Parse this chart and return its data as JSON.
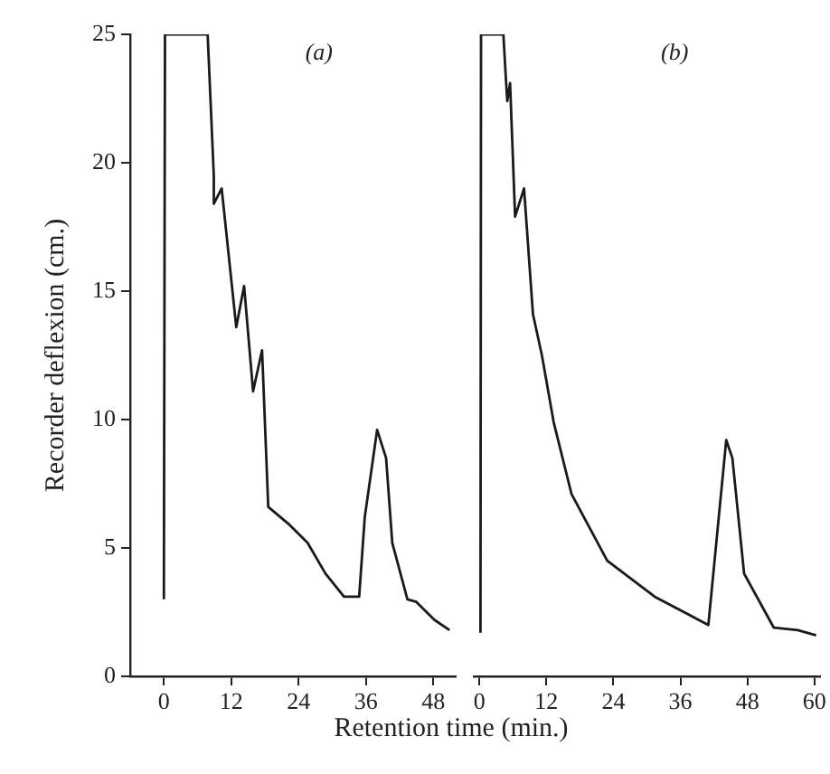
{
  "chart_data": [
    {
      "type": "line",
      "title": "(a)",
      "xlabel": "Retention time (min.)",
      "ylabel": "Recorder deflexion (cm.)",
      "x": [
        0,
        0.2,
        7.8,
        8.9,
        8.9,
        10.3,
        12.9,
        14.3,
        15.9,
        17.5,
        18.6,
        22.4,
        25.6,
        28.8,
        32.1,
        34.8,
        35.8,
        38.0,
        39.6,
        40.7,
        43.4,
        45.0,
        48.2,
        50.9
      ],
      "series": [
        {
          "color": "#1a1a1a",
          "values": [
            3.0,
            25,
            25,
            19.5,
            18.4,
            19.0,
            13.6,
            15.2,
            11.1,
            12.7,
            6.6,
            5.9,
            5.2,
            4.0,
            3.1,
            3.1,
            6.2,
            9.6,
            8.5,
            5.2,
            3.0,
            2.9,
            2.2,
            1.8
          ]
        }
      ],
      "xlim": [
        -6,
        52
      ],
      "xticks": [
        0,
        12,
        24,
        36,
        48
      ],
      "ylim": [
        0,
        25
      ],
      "yticks": [
        0,
        5,
        10,
        15,
        20,
        25
      ],
      "grid": false,
      "marker": "none"
    },
    {
      "type": "line",
      "title": "(b)",
      "x": [
        0.2,
        0.3,
        4.3,
        4.8,
        5.0,
        5.5,
        6.4,
        8.0,
        9.6,
        11.2,
        13.3,
        16.5,
        22.9,
        31.4,
        41.0,
        44.2,
        45.3,
        47.4,
        52.7,
        57.0,
        60.3
      ],
      "series": [
        {
          "color": "#1a1a1a",
          "values": [
            1.7,
            25,
            25,
            23.1,
            22.4,
            23.1,
            17.9,
            19.0,
            14.1,
            12.5,
            9.9,
            7.1,
            4.5,
            3.1,
            2.0,
            9.2,
            8.5,
            4.0,
            1.9,
            1.8,
            1.6
          ]
        }
      ],
      "xlim": [
        -1,
        61
      ],
      "xticks": [
        0,
        12,
        24,
        36,
        48,
        60
      ],
      "ylim": [
        0,
        25
      ],
      "yticks": [
        0,
        5,
        10,
        15,
        20,
        25
      ],
      "tick_labels": "x",
      "grid": false,
      "marker": "none"
    }
  ]
}
